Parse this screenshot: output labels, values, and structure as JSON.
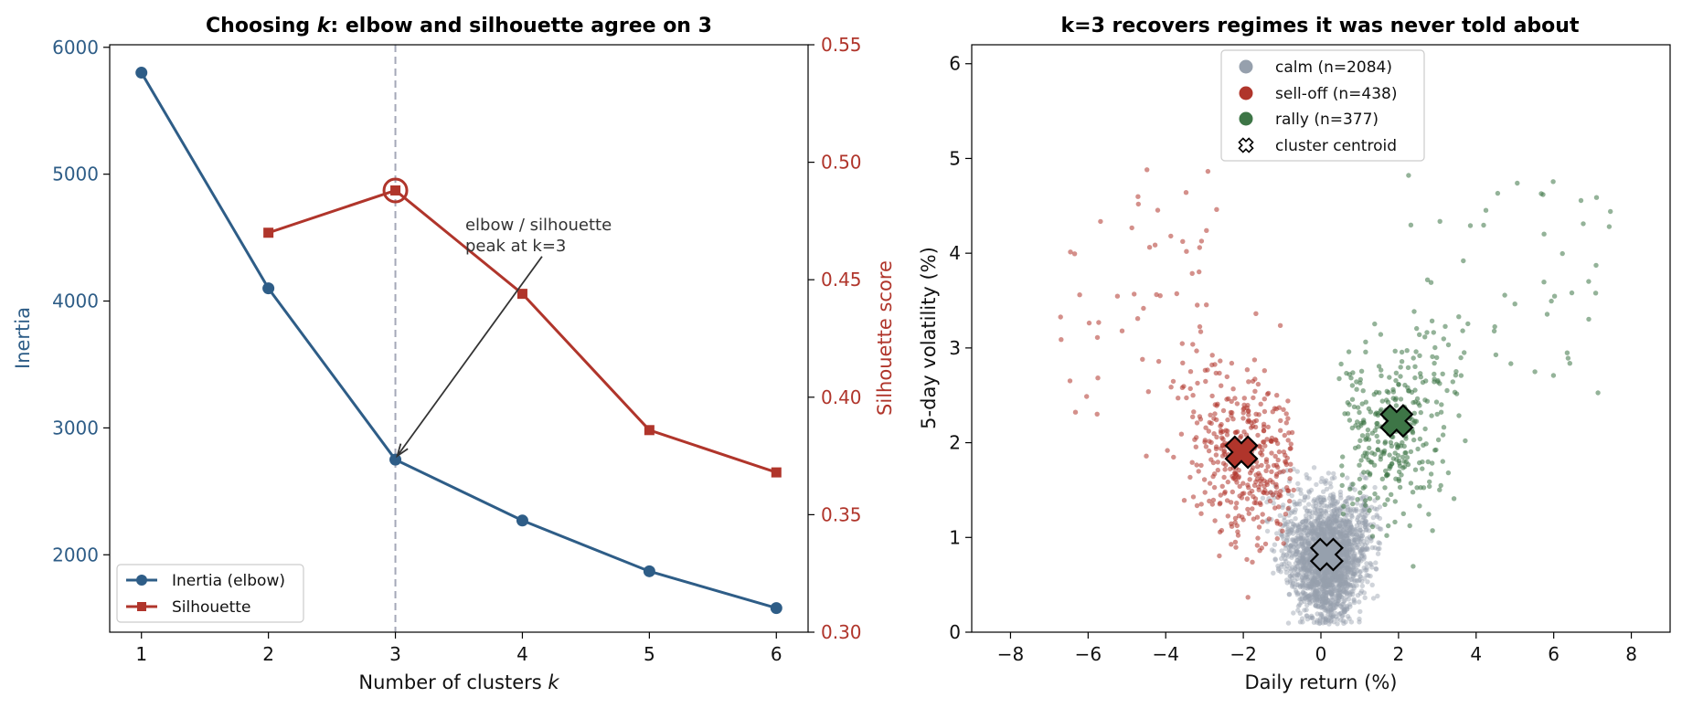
{
  "colors": {
    "inertia": "#2e5d87",
    "silhouette": "#b0352b",
    "calm": "#96a0ad",
    "selloff": "#b0352b",
    "rally": "#3d7546",
    "vline": "#a4a8b8"
  },
  "chart_data": [
    {
      "type": "line",
      "title_prefix": "Choosing ",
      "title_k": "k",
      "title_suffix": ": elbow and silhouette agree on 3",
      "xlabel_prefix": "Number of clusters ",
      "xlabel_k": "k",
      "ylabel": "Inertia",
      "y2label": "Silhouette score",
      "x": [
        1,
        2,
        3,
        4,
        5,
        6
      ],
      "xlim": [
        0.75,
        6.25
      ],
      "ylim": [
        1390,
        6020
      ],
      "y2lim": [
        0.3,
        0.55
      ],
      "xticks": [
        "1",
        "2",
        "3",
        "4",
        "5",
        "6"
      ],
      "yticks": [
        "2000",
        "3000",
        "4000",
        "5000",
        "6000"
      ],
      "y2ticks": [
        "0.30",
        "0.35",
        "0.40",
        "0.45",
        "0.50",
        "0.55"
      ],
      "series": [
        {
          "name": "Inertia (elbow)",
          "axis": "left",
          "marker": "circle",
          "x": [
            1,
            2,
            3,
            4,
            5,
            6
          ],
          "values": [
            5800,
            4100,
            2750,
            2270,
            1870,
            1580
          ]
        },
        {
          "name": "Silhouette",
          "axis": "right",
          "marker": "square",
          "x": [
            2,
            3,
            4,
            5,
            6
          ],
          "values": [
            0.47,
            0.488,
            0.444,
            0.386,
            0.368
          ]
        }
      ],
      "highlight": {
        "x": 3,
        "y2": 0.488
      },
      "vline_x": 3,
      "annotation": {
        "lines": [
          "elbow / silhouette",
          "peak at k=3"
        ],
        "text_x": 3.55,
        "text_y": 4560,
        "target_x": 3.0,
        "target_y": 2750
      },
      "legend_position": "lower-left",
      "grid": false
    },
    {
      "type": "scatter",
      "title": "k=3 recovers regimes it was never told about",
      "xlabel": "Daily return (%)",
      "ylabel": "5-day volatility (%)",
      "xlim": [
        -9,
        9
      ],
      "ylim": [
        0,
        6.2
      ],
      "xticks": [
        "−8",
        "−6",
        "−4",
        "−2",
        "0",
        "2",
        "4",
        "6",
        "8"
      ],
      "xtick_values": [
        -8,
        -6,
        -4,
        -2,
        0,
        2,
        4,
        6,
        8
      ],
      "yticks": [
        "0",
        "1",
        "2",
        "3",
        "4",
        "5",
        "6"
      ],
      "ytick_values": [
        0,
        1,
        2,
        3,
        4,
        5,
        6
      ],
      "clusters": [
        {
          "key": "calm",
          "label": "calm  (n=2084)",
          "n": 2084,
          "centroid": [
            0.15,
            0.82
          ]
        },
        {
          "key": "selloff",
          "label": "sell-off  (n=438)",
          "n": 438,
          "centroid": [
            -2.05,
            1.9
          ]
        },
        {
          "key": "rally",
          "label": "rally  (n=377)",
          "n": 377,
          "centroid": [
            1.95,
            2.23
          ]
        }
      ],
      "centroid_legend_label": "cluster centroid",
      "legend_position": "upper-center",
      "grid": false
    }
  ]
}
